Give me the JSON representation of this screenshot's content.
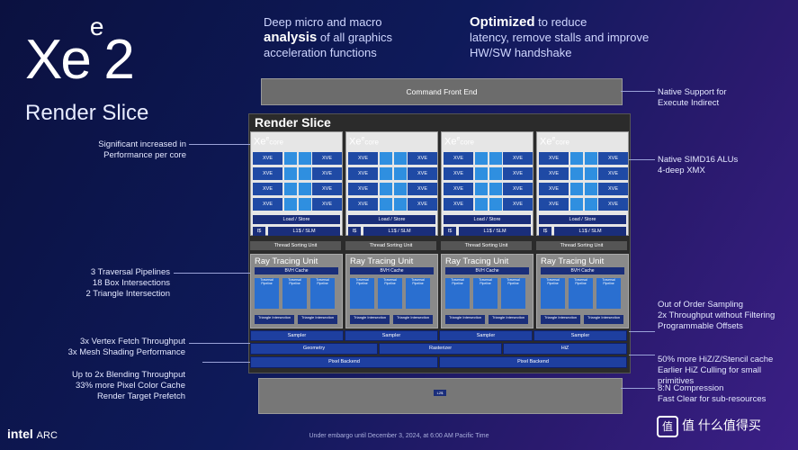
{
  "brand": {
    "xe": "Xe",
    "sup": "e",
    "num": "2",
    "subtitle": "Render Slice"
  },
  "headlines": {
    "left": {
      "pre": "Deep micro and macro",
      "bold": "analysis",
      "post": "of all graphics acceleration functions"
    },
    "right": {
      "bold": "Optimized",
      "post1": "to reduce",
      "post2": "latency, remove stalls and improve HW/SW handshake"
    }
  },
  "command_front_end": "Command Front End",
  "slice_title": "Render Slice",
  "core": {
    "label": "Xe",
    "sup": "e",
    "suffix": "core",
    "xve": "XVE",
    "xmx": "XMX",
    "load_store": "Load / Store",
    "icache": "I$",
    "l1": "L1$ / SLM"
  },
  "thread_sorting": "Thread Sorting Unit",
  "rtu": {
    "label": "Ray Tracing Unit",
    "bvh": "BVH Cache",
    "traversal": "Traversal Pipeline",
    "triangle": "Triangle Intersection"
  },
  "bottom_blocks": {
    "sampler": "Sampler",
    "geometry": "Geometry",
    "rasterizer": "Rasterizer",
    "hiz": "HiZ",
    "pixel_backend": "Pixel Backend",
    "l2": "L2$"
  },
  "left_notes": [
    [
      "Significant increased in",
      "Performance per core"
    ],
    [
      "3 Traversal Pipelines",
      "18 Box Intersections",
      "2 Triangle Intersection"
    ],
    [
      "3x Vertex Fetch Throughput",
      "3x Mesh Shading Performance"
    ],
    [
      "Up to 2x Blending Throughput",
      "33% more Pixel Color Cache",
      "Render Target Prefetch"
    ]
  ],
  "right_notes": [
    [
      "Native Support for",
      "Execute Indirect"
    ],
    [
      "Native SIMD16 ALUs",
      "4-deep XMX"
    ],
    [
      "Out of Order Sampling",
      "2x Throughput without Filtering",
      "Programmable Offsets"
    ],
    [
      "50% more HiZ/Z/Stencil cache",
      "Earlier HiZ Culling for small primitives"
    ],
    [
      "8:N Compression",
      "Fast Clear for sub-resources"
    ]
  ],
  "footer": {
    "intel": "intel",
    "arc": "ARC",
    "embargo": "Under embargo until December 3, 2024, at 6:00 AM Pacific Time",
    "watermark": "值 什么值得买"
  },
  "colors": {
    "accent": "#1f4aa5",
    "xmx": "#2f8fe0",
    "bg": "#0e1a5a"
  }
}
